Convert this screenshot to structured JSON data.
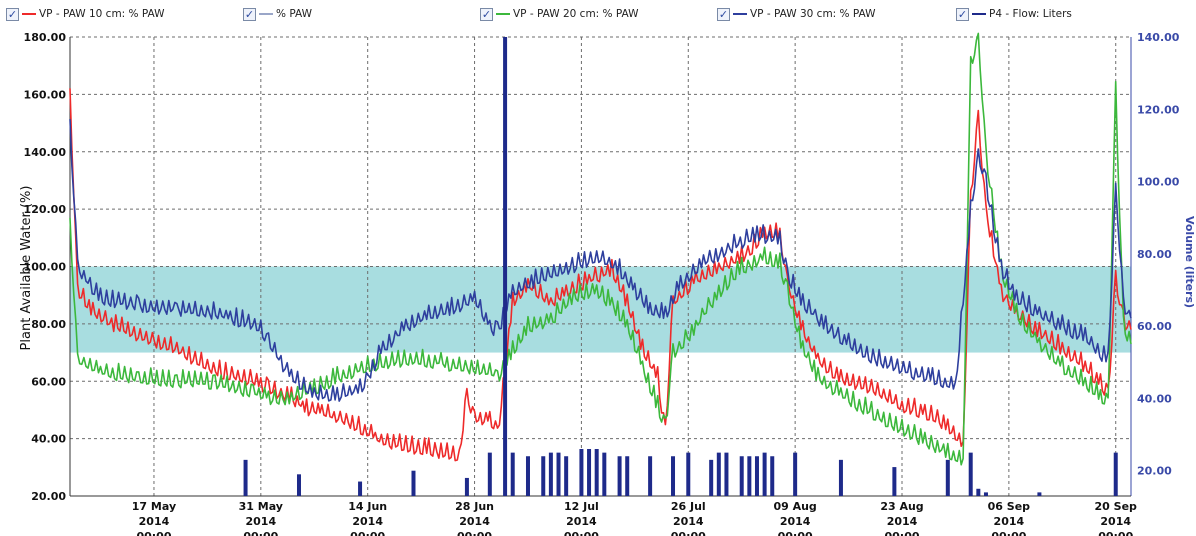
{
  "legend": [
    {
      "label": "VP - PAW 10 cm: % PAW",
      "color": "#ee2a2a",
      "check": "✓"
    },
    {
      "label": "% PAW",
      "color": "#9aa6c8",
      "check": "✓"
    },
    {
      "label": "VP - PAW 20 cm: % PAW",
      "color": "#3cb83c",
      "check": "✓"
    },
    {
      "label": "VP - PAW 30 cm: % PAW",
      "color": "#2e3f9e",
      "check": "✓"
    },
    {
      "label": "P4 - Flow: Liters",
      "color": "#1e2a8a",
      "check": "✓"
    }
  ],
  "colors": {
    "red": "#ee2a2a",
    "green": "#3cb83c",
    "blue": "#2e3f9e",
    "flow": "#1e2a8a",
    "band": "#a8dde0",
    "grid": "#6d6d6d"
  },
  "chart_data": {
    "type": "line",
    "title": "",
    "ylabel": "Plant Available Water (%)",
    "y2label": "Volume (liters)",
    "ylim": [
      20,
      180
    ],
    "y2lim": [
      13,
      140
    ],
    "yticks": [
      "20.00",
      "40.00",
      "60.00",
      "80.00",
      "100.00",
      "120.00",
      "140.00",
      "160.00",
      "180.00"
    ],
    "y2ticks": [
      "20.00",
      "40.00",
      "60.00",
      "80.00",
      "100.00",
      "120.00",
      "140.00"
    ],
    "target_band": [
      70,
      100
    ],
    "xlim": [
      "2014-05-06",
      "2014-09-22"
    ],
    "x_ticks": [
      {
        "date": "2014-05-17",
        "label": [
          "17 May",
          "2014",
          "00:00"
        ]
      },
      {
        "date": "2014-05-31",
        "label": [
          "31 May",
          "2014",
          "00:00"
        ]
      },
      {
        "date": "2014-06-14",
        "label": [
          "14 Jun",
          "2014",
          "00:00"
        ]
      },
      {
        "date": "2014-06-28",
        "label": [
          "28 Jun",
          "2014",
          "00:00"
        ]
      },
      {
        "date": "2014-07-12",
        "label": [
          "12 Jul",
          "2014",
          "00:00"
        ]
      },
      {
        "date": "2014-07-26",
        "label": [
          "26 Jul",
          "2014",
          "00:00"
        ]
      },
      {
        "date": "2014-08-09",
        "label": [
          "09 Aug",
          "2014",
          "00:00"
        ]
      },
      {
        "date": "2014-08-23",
        "label": [
          "23 Aug",
          "2014",
          "00:00"
        ]
      },
      {
        "date": "2014-09-06",
        "label": [
          "06 Sep",
          "2014",
          "00:00"
        ]
      },
      {
        "date": "2014-09-20",
        "label": [
          "20 Sep",
          "2014",
          "00:00"
        ]
      }
    ],
    "series": [
      {
        "name": "VP - PAW 10 cm: % PAW",
        "color": "#ee2a2a",
        "axis": "left",
        "points": [
          [
            "2014-05-06",
            160
          ],
          [
            "2014-05-07",
            92
          ],
          [
            "2014-05-09",
            85
          ],
          [
            "2014-05-12",
            80
          ],
          [
            "2014-05-16",
            76
          ],
          [
            "2014-05-20",
            72
          ],
          [
            "2014-05-24",
            66
          ],
          [
            "2014-05-28",
            62
          ],
          [
            "2014-05-31",
            60
          ],
          [
            "2014-06-01",
            58
          ],
          [
            "2014-06-04",
            55
          ],
          [
            "2014-06-06",
            51
          ],
          [
            "2014-06-08",
            50
          ],
          [
            "2014-06-12",
            46
          ],
          [
            "2014-06-15",
            41
          ],
          [
            "2014-06-19",
            38
          ],
          [
            "2014-06-22",
            37
          ],
          [
            "2014-06-26",
            35
          ],
          [
            "2014-06-27",
            55
          ],
          [
            "2014-06-28",
            48
          ],
          [
            "2014-06-30",
            48
          ],
          [
            "2014-07-01",
            42
          ],
          [
            "2014-07-03",
            88
          ],
          [
            "2014-07-05",
            94
          ],
          [
            "2014-07-08",
            88
          ],
          [
            "2014-07-10",
            92
          ],
          [
            "2014-07-13",
            96
          ],
          [
            "2014-07-16",
            100
          ],
          [
            "2014-07-18",
            88
          ],
          [
            "2014-07-20",
            72
          ],
          [
            "2014-07-22",
            62
          ],
          [
            "2014-07-23",
            42
          ],
          [
            "2014-07-24",
            88
          ],
          [
            "2014-07-27",
            96
          ],
          [
            "2014-07-30",
            100
          ],
          [
            "2014-08-02",
            104
          ],
          [
            "2014-08-05",
            112
          ],
          [
            "2014-08-07",
            112
          ],
          [
            "2014-08-08",
            95
          ],
          [
            "2014-08-10",
            78
          ],
          [
            "2014-08-12",
            68
          ],
          [
            "2014-08-15",
            62
          ],
          [
            "2014-08-19",
            58
          ],
          [
            "2014-08-23",
            52
          ],
          [
            "2014-08-26",
            50
          ],
          [
            "2014-08-29",
            45
          ],
          [
            "2014-08-31",
            38
          ],
          [
            "2014-09-01",
            125
          ],
          [
            "2014-09-02",
            152
          ],
          [
            "2014-09-03",
            120
          ],
          [
            "2014-09-05",
            92
          ],
          [
            "2014-09-07",
            84
          ],
          [
            "2014-09-10",
            78
          ],
          [
            "2014-09-13",
            72
          ],
          [
            "2014-09-16",
            66
          ],
          [
            "2014-09-18",
            60
          ],
          [
            "2014-09-19",
            56
          ],
          [
            "2014-09-20",
            96
          ],
          [
            "2014-09-21",
            82
          ],
          [
            "2014-09-22",
            78
          ]
        ]
      },
      {
        "name": "VP - PAW 20 cm: % PAW",
        "color": "#3cb83c",
        "axis": "left",
        "points": [
          [
            "2014-05-06",
            115
          ],
          [
            "2014-05-07",
            68
          ],
          [
            "2014-05-10",
            64
          ],
          [
            "2014-05-15",
            62
          ],
          [
            "2014-05-20",
            61
          ],
          [
            "2014-05-25",
            60
          ],
          [
            "2014-05-30",
            57
          ],
          [
            "2014-06-01",
            55
          ],
          [
            "2014-06-04",
            55
          ],
          [
            "2014-06-07",
            58
          ],
          [
            "2014-06-10",
            62
          ],
          [
            "2014-06-14",
            66
          ],
          [
            "2014-06-18",
            68
          ],
          [
            "2014-06-22",
            68
          ],
          [
            "2014-06-26",
            66
          ],
          [
            "2014-06-30",
            64
          ],
          [
            "2014-07-01",
            62
          ],
          [
            "2014-07-03",
            72
          ],
          [
            "2014-07-05",
            80
          ],
          [
            "2014-07-08",
            82
          ],
          [
            "2014-07-11",
            90
          ],
          [
            "2014-07-14",
            92
          ],
          [
            "2014-07-16",
            88
          ],
          [
            "2014-07-18",
            80
          ],
          [
            "2014-07-20",
            66
          ],
          [
            "2014-07-22",
            52
          ],
          [
            "2014-07-23",
            45
          ],
          [
            "2014-07-24",
            70
          ],
          [
            "2014-07-27",
            80
          ],
          [
            "2014-07-30",
            92
          ],
          [
            "2014-08-02",
            100
          ],
          [
            "2014-08-05",
            104
          ],
          [
            "2014-08-07",
            102
          ],
          [
            "2014-08-08",
            92
          ],
          [
            "2014-08-10",
            72
          ],
          [
            "2014-08-12",
            62
          ],
          [
            "2014-08-15",
            56
          ],
          [
            "2014-08-19",
            50
          ],
          [
            "2014-08-23",
            44
          ],
          [
            "2014-08-26",
            40
          ],
          [
            "2014-08-29",
            36
          ],
          [
            "2014-08-31",
            32
          ],
          [
            "2014-09-01",
            170
          ],
          [
            "2014-09-02",
            180
          ],
          [
            "2014-09-03",
            140
          ],
          [
            "2014-09-05",
            100
          ],
          [
            "2014-09-07",
            84
          ],
          [
            "2014-09-10",
            74
          ],
          [
            "2014-09-13",
            66
          ],
          [
            "2014-09-16",
            60
          ],
          [
            "2014-09-18",
            56
          ],
          [
            "2014-09-19",
            52
          ],
          [
            "2014-09-20",
            162
          ],
          [
            "2014-09-21",
            80
          ],
          [
            "2014-09-22",
            73
          ]
        ]
      },
      {
        "name": "VP - PAW 30 cm: % PAW",
        "color": "#2e3f9e",
        "axis": "left",
        "points": [
          [
            "2014-05-06",
            150
          ],
          [
            "2014-05-07",
            100
          ],
          [
            "2014-05-10",
            90
          ],
          [
            "2014-05-15",
            87
          ],
          [
            "2014-05-20",
            86
          ],
          [
            "2014-05-24",
            85
          ],
          [
            "2014-05-27",
            83
          ],
          [
            "2014-05-31",
            80
          ],
          [
            "2014-06-01",
            74
          ],
          [
            "2014-06-04",
            62
          ],
          [
            "2014-06-07",
            56
          ],
          [
            "2014-06-10",
            56
          ],
          [
            "2014-06-13",
            58
          ],
          [
            "2014-06-16",
            72
          ],
          [
            "2014-06-19",
            80
          ],
          [
            "2014-06-22",
            84
          ],
          [
            "2014-06-25",
            86
          ],
          [
            "2014-06-28",
            90
          ],
          [
            "2014-06-30",
            80
          ],
          [
            "2014-07-01",
            78
          ],
          [
            "2014-07-03",
            92
          ],
          [
            "2014-07-06",
            96
          ],
          [
            "2014-07-10",
            100
          ],
          [
            "2014-07-14",
            104
          ],
          [
            "2014-07-17",
            100
          ],
          [
            "2014-07-19",
            92
          ],
          [
            "2014-07-21",
            86
          ],
          [
            "2014-07-23",
            84
          ],
          [
            "2014-07-25",
            94
          ],
          [
            "2014-07-28",
            102
          ],
          [
            "2014-08-01",
            108
          ],
          [
            "2014-08-04",
            112
          ],
          [
            "2014-08-07",
            110
          ],
          [
            "2014-08-08",
            98
          ],
          [
            "2014-08-10",
            88
          ],
          [
            "2014-08-13",
            80
          ],
          [
            "2014-08-16",
            74
          ],
          [
            "2014-08-20",
            68
          ],
          [
            "2014-08-24",
            64
          ],
          [
            "2014-08-27",
            62
          ],
          [
            "2014-08-30",
            58
          ],
          [
            "2014-09-01",
            120
          ],
          [
            "2014-09-02",
            138
          ],
          [
            "2014-09-03",
            130
          ],
          [
            "2014-09-05",
            100
          ],
          [
            "2014-09-07",
            90
          ],
          [
            "2014-09-10",
            84
          ],
          [
            "2014-09-13",
            80
          ],
          [
            "2014-09-16",
            76
          ],
          [
            "2014-09-19",
            68
          ],
          [
            "2014-09-20",
            128
          ],
          [
            "2014-09-21",
            88
          ],
          [
            "2014-09-22",
            82
          ]
        ]
      },
      {
        "name": "P4 - Flow: Liters",
        "color": "#1e2a8a",
        "axis": "right",
        "type": "bar",
        "points": [
          [
            "2014-05-29",
            23
          ],
          [
            "2014-06-05",
            19
          ],
          [
            "2014-06-13",
            17
          ],
          [
            "2014-06-20",
            20
          ],
          [
            "2014-06-27",
            18
          ],
          [
            "2014-06-30",
            25
          ],
          [
            "2014-07-02",
            140
          ],
          [
            "2014-07-03",
            25
          ],
          [
            "2014-07-05",
            24
          ],
          [
            "2014-07-07",
            24
          ],
          [
            "2014-07-08",
            25
          ],
          [
            "2014-07-09",
            25
          ],
          [
            "2014-07-10",
            24
          ],
          [
            "2014-07-12",
            26
          ],
          [
            "2014-07-13",
            26
          ],
          [
            "2014-07-14",
            26
          ],
          [
            "2014-07-15",
            25
          ],
          [
            "2014-07-17",
            24
          ],
          [
            "2014-07-18",
            24
          ],
          [
            "2014-07-21",
            24
          ],
          [
            "2014-07-24",
            24
          ],
          [
            "2014-07-26",
            25
          ],
          [
            "2014-07-29",
            23
          ],
          [
            "2014-07-30",
            25
          ],
          [
            "2014-07-31",
            25
          ],
          [
            "2014-08-02",
            24
          ],
          [
            "2014-08-03",
            24
          ],
          [
            "2014-08-04",
            24
          ],
          [
            "2014-08-05",
            25
          ],
          [
            "2014-08-06",
            24
          ],
          [
            "2014-08-09",
            25
          ],
          [
            "2014-08-15",
            23
          ],
          [
            "2014-08-22",
            21
          ],
          [
            "2014-08-29",
            23
          ],
          [
            "2014-09-01",
            25
          ],
          [
            "2014-09-02",
            15
          ],
          [
            "2014-09-03",
            14
          ],
          [
            "2014-09-10",
            14
          ],
          [
            "2014-09-20",
            25
          ]
        ]
      }
    ]
  }
}
